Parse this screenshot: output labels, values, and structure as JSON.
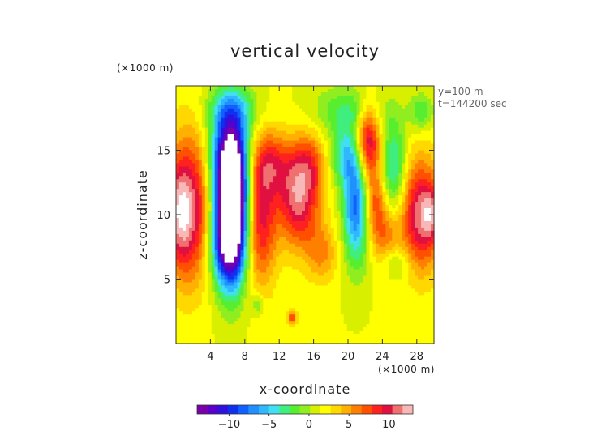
{
  "chart_data": {
    "type": "heatmap",
    "title": "vertical velocity",
    "xlabel": "x-coordinate",
    "ylabel": "z-coordinate",
    "x_unit": "(×1000 m)",
    "y_unit": "(×1000 m)",
    "annotations": [
      "y=100 m",
      "t=144200 sec"
    ],
    "xlim": [
      0,
      30
    ],
    "ylim": [
      0,
      20
    ],
    "x_ticks": [
      4,
      8,
      12,
      16,
      20,
      24,
      28
    ],
    "y_ticks": [
      5,
      10,
      15
    ],
    "x_tick_labels": [
      "4",
      "8",
      "12",
      "16",
      "20",
      "24",
      "28"
    ],
    "y_tick_labels": [
      "5",
      "10",
      "15"
    ],
    "colorbar": {
      "min": -14,
      "max": 13,
      "ticks": [
        -10,
        -5,
        0,
        5,
        10
      ],
      "tick_labels": [
        "−10",
        "−5",
        "0",
        "5",
        "10"
      ],
      "colors": [
        "#7a00aa",
        "#5a00c8",
        "#3010dc",
        "#1030f0",
        "#1060ff",
        "#2090ff",
        "#30b8ff",
        "#40e0f0",
        "#40ee80",
        "#58ee30",
        "#90ee20",
        "#d8f000",
        "#ffff00",
        "#ffd800",
        "#ffb000",
        "#ff8000",
        "#ff5000",
        "#ff2020",
        "#e01040",
        "#f07070",
        "#f8b8b8"
      ]
    },
    "fields": {
      "background": 1.5,
      "features": [
        {
          "x": 6.5,
          "z": 10.5,
          "sx": 1.3,
          "sz": 3.8,
          "amp": -20
        },
        {
          "x": 6.2,
          "z": 14.5,
          "sx": 1.6,
          "sz": 2.8,
          "amp": -10
        },
        {
          "x": 5.8,
          "z": 7.5,
          "sx": 1.4,
          "sz": 2.2,
          "amp": -7
        },
        {
          "x": 6.5,
          "z": 18.2,
          "sx": 2.0,
          "sz": 1.2,
          "amp": -4
        },
        {
          "x": 1.5,
          "z": 10.5,
          "sx": 1.8,
          "sz": 4.0,
          "amp": 10
        },
        {
          "x": 0.3,
          "z": 10.0,
          "sx": 0.9,
          "sz": 2.5,
          "amp": 4
        },
        {
          "x": 9.8,
          "z": 9.5,
          "sx": 1.3,
          "sz": 3.5,
          "amp": 8
        },
        {
          "x": 11.0,
          "z": 14.0,
          "sx": 1.8,
          "sz": 1.8,
          "amp": 6
        },
        {
          "x": 14.2,
          "z": 11.0,
          "sx": 1.7,
          "sz": 2.5,
          "amp": 9
        },
        {
          "x": 15.5,
          "z": 14.0,
          "sx": 1.4,
          "sz": 1.8,
          "amp": 5
        },
        {
          "x": 17.0,
          "z": 7.0,
          "sx": 1.3,
          "sz": 1.6,
          "amp": 4
        },
        {
          "x": 21.0,
          "z": 10.8,
          "sx": 1.1,
          "sz": 3.2,
          "amp": -10
        },
        {
          "x": 19.5,
          "z": 14.5,
          "sx": 1.2,
          "sz": 1.5,
          "amp": -5
        },
        {
          "x": 20.0,
          "z": 18.0,
          "sx": 2.8,
          "sz": 1.4,
          "amp": -4
        },
        {
          "x": 22.3,
          "z": 15.8,
          "sx": 1.0,
          "sz": 2.0,
          "amp": 10
        },
        {
          "x": 23.0,
          "z": 11.0,
          "sx": 1.0,
          "sz": 2.0,
          "amp": 6
        },
        {
          "x": 24.5,
          "z": 8.0,
          "sx": 1.2,
          "sz": 2.0,
          "amp": 5
        },
        {
          "x": 25.3,
          "z": 13.5,
          "sx": 1.0,
          "sz": 2.8,
          "amp": -6
        },
        {
          "x": 25.3,
          "z": 6.3,
          "sx": 1.2,
          "sz": 1.0,
          "amp": -4
        },
        {
          "x": 28.5,
          "z": 10.0,
          "sx": 1.6,
          "sz": 3.0,
          "amp": 10
        },
        {
          "x": 29.7,
          "z": 10.0,
          "sx": 0.6,
          "sz": 1.3,
          "amp": 4
        },
        {
          "x": 28.5,
          "z": 18.0,
          "sx": 1.0,
          "sz": 1.0,
          "amp": -4
        },
        {
          "x": 13.5,
          "z": 2.0,
          "sx": 0.4,
          "sz": 0.4,
          "amp": 6
        },
        {
          "x": 9.5,
          "z": 3.0,
          "sx": 0.5,
          "sz": 0.6,
          "amp": -3
        }
      ]
    }
  }
}
